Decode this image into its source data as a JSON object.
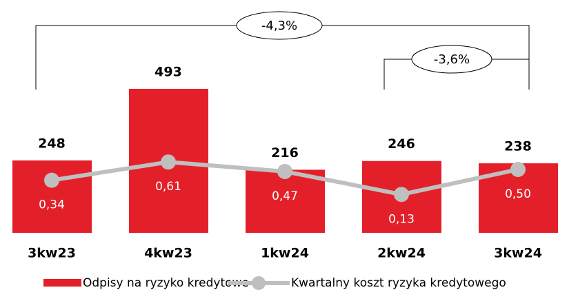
{
  "chart_data": {
    "type": "bar",
    "categories": [
      "3kw23",
      "4kw23",
      "1kw24",
      "2kw24",
      "3kw24"
    ],
    "series": [
      {
        "name": "Odpisy na ryzyko kredytowe",
        "type": "bar",
        "color": "#e3202a",
        "values": [
          248,
          493,
          216,
          246,
          238
        ]
      },
      {
        "name": "Kwartalny koszt ryzyka kredytowego",
        "type": "line",
        "axis": "y2",
        "color": "#bfbfbf",
        "values": [
          0.34,
          0.61,
          0.47,
          0.13,
          0.5
        ],
        "value_labels": [
          "0,34",
          "0,61",
          "0,47",
          "0,13",
          "0,50"
        ]
      }
    ],
    "ylim": [
      0,
      500
    ],
    "y2lim": [
      0,
      1
    ],
    "annotations": [
      "-4,3%",
      "-3,6%"
    ]
  }
}
